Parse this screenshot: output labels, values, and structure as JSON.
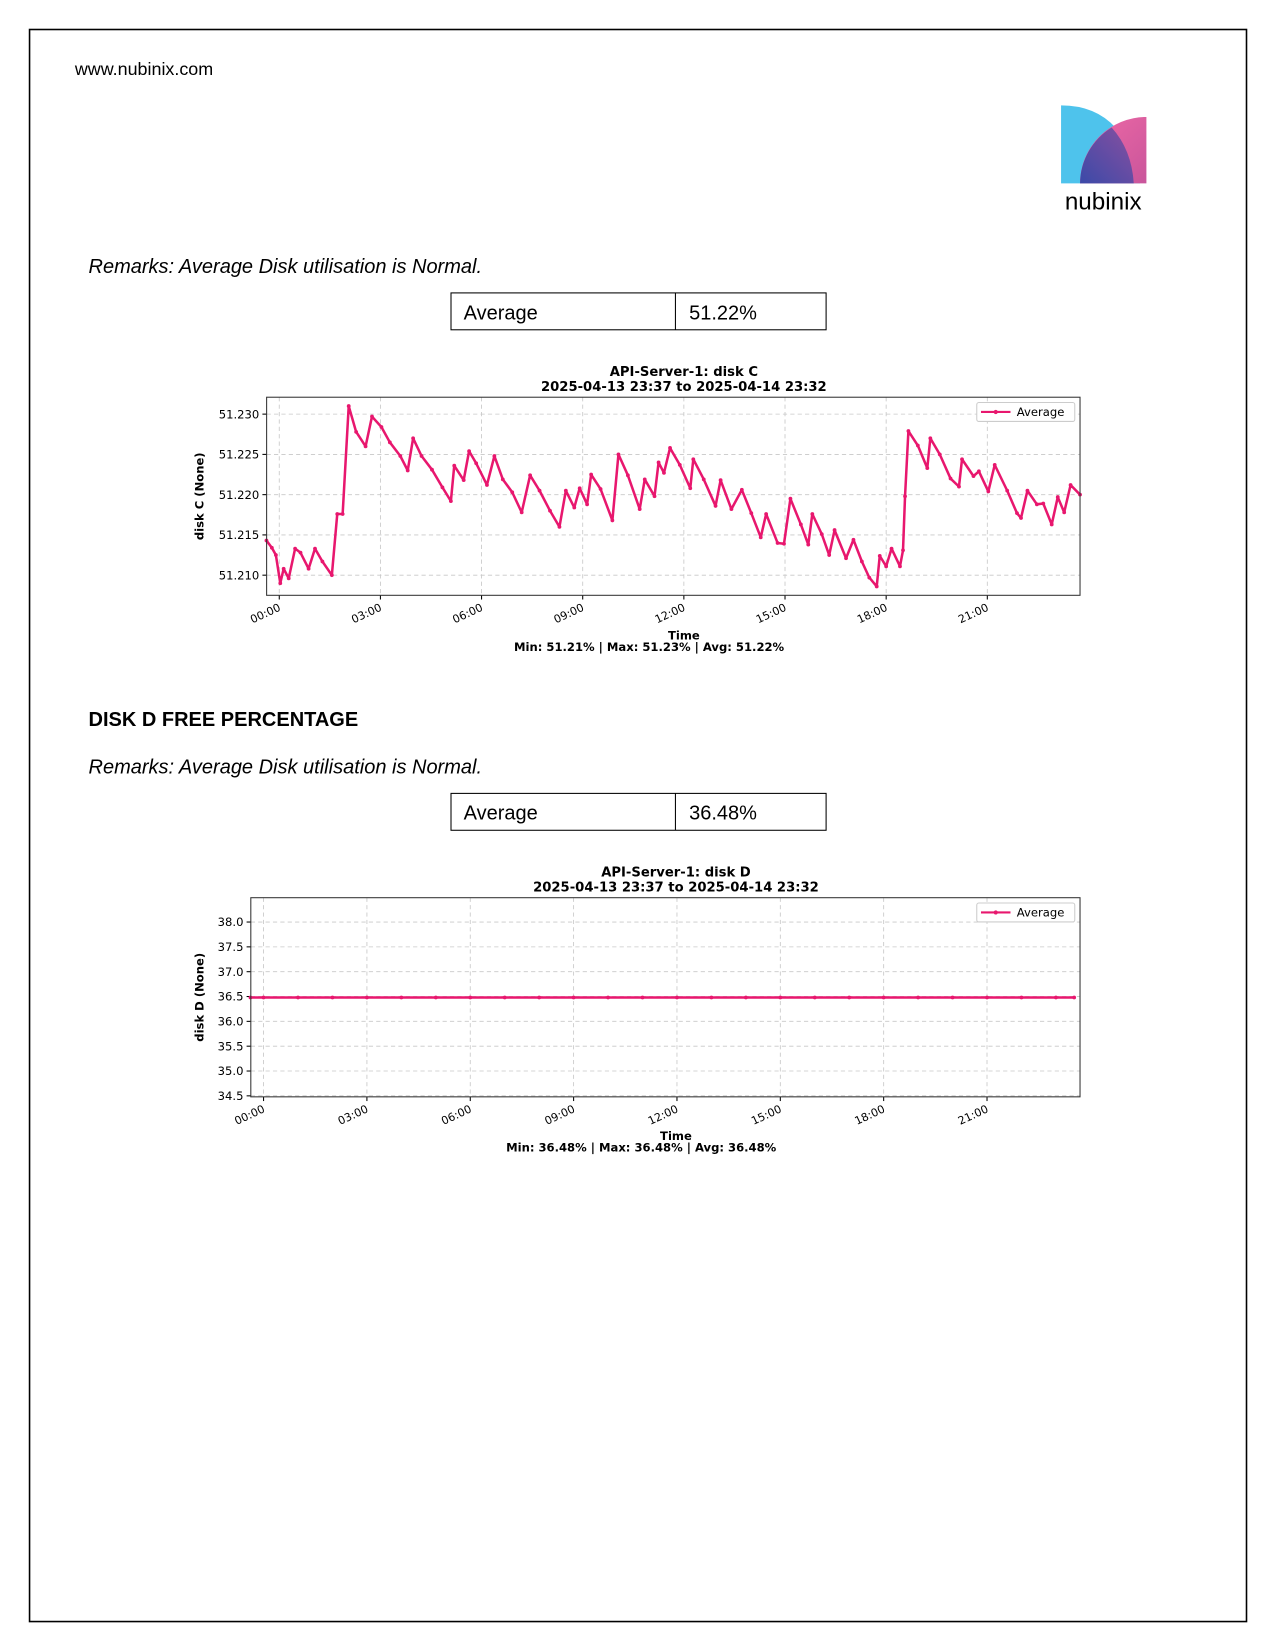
{
  "header": {
    "url": "www.nubinix.com",
    "logo": "nubinix"
  },
  "sections": [
    {
      "remarks": "Remarks: Average Disk utilisation is Normal.",
      "table": [
        [
          "Average",
          "51.22%"
        ]
      ]
    },
    {
      "heading": "DISK D FREE PERCENTAGE",
      "remarks": "Remarks: Average Disk utilisation is Normal.",
      "table": [
        [
          "Average",
          "36.48%"
        ]
      ]
    }
  ],
  "chart_data": [
    {
      "type": "line",
      "title": "API-Server-1: disk C",
      "subtitle": "2025-04-13 23:37 to 2025-04-14 23:32",
      "xlabel": "Time",
      "ylabel": "disk C (None)",
      "annotation": "Min: 51.21% | Max: 51.23% | Avg: 51.22%",
      "x": [
        -0.38,
        -0.22,
        -0.1,
        0.03,
        0.13,
        0.28,
        0.47,
        0.63,
        0.87,
        1.06,
        1.28,
        1.56,
        1.72,
        1.88,
        2.06,
        2.28,
        2.56,
        2.75,
        3.03,
        3.28,
        3.59,
        3.81,
        3.97,
        4.22,
        4.53,
        4.84,
        5.09,
        5.19,
        5.47,
        5.63,
        5.84,
        6.16,
        6.38,
        6.63,
        6.91,
        7.19,
        7.44,
        7.72,
        8.03,
        8.31,
        8.5,
        8.75,
        8.91,
        9.13,
        9.25,
        9.53,
        9.88,
        10.06,
        10.34,
        10.69,
        10.84,
        11.13,
        11.25,
        11.41,
        11.59,
        11.88,
        12.19,
        12.28,
        12.59,
        12.94,
        13.09,
        13.41,
        13.72,
        14.0,
        14.28,
        14.44,
        14.78,
        14.97,
        15.16,
        15.47,
        15.69,
        15.81,
        16.09,
        16.31,
        16.47,
        16.81,
        17.03,
        17.28,
        17.5,
        17.72,
        17.81,
        18.0,
        18.16,
        18.41,
        18.5,
        18.56,
        18.66,
        18.94,
        19.22,
        19.31,
        19.59,
        19.91,
        20.16,
        20.25,
        20.59,
        20.75,
        21.03,
        21.22,
        21.59,
        21.88,
        22.0,
        22.19,
        22.47,
        22.66,
        22.91,
        23.09,
        23.28,
        23.47,
        23.75
      ],
      "series": [
        {
          "name": "Average",
          "color": "#e8176e",
          "values": [
            51.2143,
            51.2134,
            51.2125,
            51.209,
            51.2108,
            51.2096,
            51.2133,
            51.2128,
            51.2108,
            51.2133,
            51.2117,
            51.21,
            51.2176,
            51.2176,
            51.231,
            51.2278,
            51.226,
            51.2297,
            51.2284,
            51.2265,
            51.2248,
            51.223,
            51.227,
            51.2248,
            51.2231,
            51.2209,
            51.2192,
            51.2236,
            51.2218,
            51.2254,
            51.2239,
            51.2212,
            51.2248,
            51.2219,
            51.2203,
            51.2178,
            51.2224,
            51.2205,
            51.218,
            51.216,
            51.2205,
            51.2184,
            51.2208,
            51.2188,
            51.2225,
            51.2207,
            51.2168,
            51.225,
            51.2224,
            51.2182,
            51.2219,
            51.2198,
            51.224,
            51.2227,
            51.2258,
            51.2237,
            51.2208,
            51.2244,
            51.2219,
            51.2186,
            51.2218,
            51.2182,
            51.2206,
            51.2177,
            51.2147,
            51.2176,
            51.214,
            51.2139,
            51.2195,
            51.2163,
            51.2138,
            51.2176,
            51.2151,
            51.2125,
            51.2156,
            51.2121,
            51.2144,
            51.2117,
            51.2097,
            51.2086,
            51.2124,
            51.2111,
            51.2133,
            51.2111,
            51.2131,
            51.2198,
            51.2279,
            51.2261,
            51.2233,
            51.227,
            51.225,
            51.222,
            51.221,
            51.2244,
            51.2223,
            51.2229,
            51.2204,
            51.2237,
            51.2205,
            51.2177,
            51.2171,
            51.2205,
            51.2188,
            51.2189,
            51.2163,
            51.2197,
            51.2178,
            51.2212,
            51.22
          ]
        }
      ],
      "xlim": [
        -0.375,
        23.75
      ],
      "ylim": [
        51.2075,
        51.2321
      ],
      "xticks": [
        {
          "value": 0,
          "label": "00:00"
        },
        {
          "value": 3,
          "label": "03:00"
        },
        {
          "value": 6,
          "label": "06:00"
        },
        {
          "value": 9,
          "label": "09:00"
        },
        {
          "value": 12,
          "label": "12:00"
        },
        {
          "value": 15,
          "label": "15:00"
        },
        {
          "value": 18,
          "label": "18:00"
        },
        {
          "value": 21,
          "label": "21:00"
        }
      ],
      "yticks": [
        {
          "value": 51.21,
          "label": "51.210"
        },
        {
          "value": 51.215,
          "label": "51.215"
        },
        {
          "value": 51.22,
          "label": "51.220"
        },
        {
          "value": 51.225,
          "label": "51.225"
        },
        {
          "value": 51.23,
          "label": "51.230"
        }
      ],
      "grid": true,
      "legend": "upper right"
    },
    {
      "type": "line",
      "title": "API-Server-1: disk D",
      "subtitle": "2025-04-13 23:37 to 2025-04-14 23:32",
      "xlabel": "Time",
      "ylabel": "disk D (None)",
      "annotation": "Min: 36.48% | Max: 36.48% | Avg: 36.48%",
      "x": [
        -0.38,
        0,
        1,
        2,
        3,
        4,
        5,
        6,
        7,
        8,
        9,
        10,
        11,
        12,
        13,
        14,
        15,
        16,
        17,
        18,
        19,
        20,
        21,
        22,
        23,
        23.53
      ],
      "series": [
        {
          "name": "Average",
          "color": "#e8176e",
          "values": [
            36.48,
            36.48,
            36.48,
            36.48,
            36.48,
            36.48,
            36.48,
            36.48,
            36.48,
            36.48,
            36.48,
            36.48,
            36.48,
            36.48,
            36.48,
            36.48,
            36.48,
            36.48,
            36.48,
            36.48,
            36.48,
            36.48,
            36.48,
            36.48,
            36.48,
            36.48
          ]
        }
      ],
      "xlim": [
        -0.37,
        23.7
      ],
      "ylim": [
        34.48,
        38.49
      ],
      "xticks": [
        {
          "value": 0,
          "label": "00:00"
        },
        {
          "value": 3,
          "label": "03:00"
        },
        {
          "value": 6,
          "label": "06:00"
        },
        {
          "value": 9,
          "label": "09:00"
        },
        {
          "value": 12,
          "label": "12:00"
        },
        {
          "value": 15,
          "label": "15:00"
        },
        {
          "value": 18,
          "label": "18:00"
        },
        {
          "value": 21,
          "label": "21:00"
        }
      ],
      "yticks": [
        {
          "value": 34.5,
          "label": "34.5"
        },
        {
          "value": 35,
          "label": "35.0"
        },
        {
          "value": 35.5,
          "label": "35.5"
        },
        {
          "value": 36,
          "label": "36.0"
        },
        {
          "value": 36.5,
          "label": "36.5"
        },
        {
          "value": 37,
          "label": "37.0"
        },
        {
          "value": 37.5,
          "label": "37.5"
        },
        {
          "value": 38,
          "label": "38.0"
        }
      ],
      "grid": true,
      "legend": "upper right"
    }
  ]
}
